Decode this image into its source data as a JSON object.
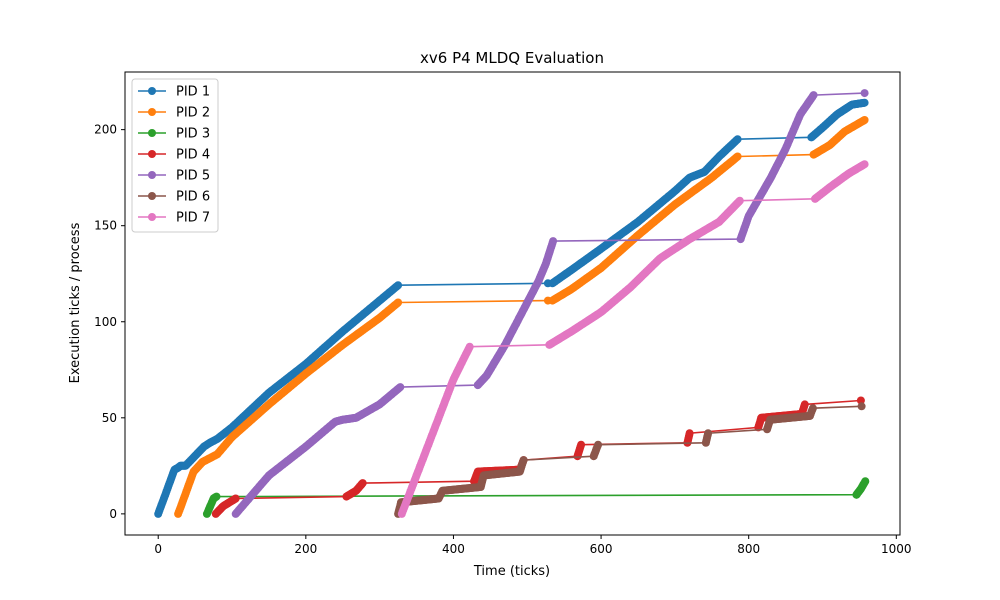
{
  "chart_data": {
    "type": "line",
    "title": "xv6 P4 MLDQ Evaluation",
    "xlabel": "Time (ticks)",
    "ylabel": "Execution ticks / process",
    "xlim": [
      -45,
      1005
    ],
    "ylim": [
      -11,
      230
    ],
    "xticks": [
      0,
      200,
      400,
      600,
      800,
      1000
    ],
    "yticks": [
      0,
      50,
      100,
      150,
      200
    ],
    "grid": false,
    "legend_position": "top-left",
    "series": [
      {
        "name": "PID 1",
        "color": "#1f77b4",
        "segments": [
          [
            [
              0,
              0
            ],
            [
              22,
              23
            ],
            [
              27,
              24
            ],
            [
              30,
              25
            ],
            [
              37,
              25
            ],
            [
              62,
              35
            ],
            [
              70,
              37
            ],
            [
              80,
              39
            ],
            [
              100,
              45
            ],
            [
              150,
              63
            ],
            [
              200,
              78
            ],
            [
              250,
              95
            ],
            [
              300,
              111
            ],
            [
              325,
              119
            ],
            [
              528,
              120
            ]
          ],
          [
            [
              534,
              120
            ],
            [
              560,
              127
            ],
            [
              600,
              138
            ],
            [
              650,
              152
            ],
            [
              700,
              168
            ],
            [
              720,
              175
            ],
            [
              740,
              178
            ],
            [
              760,
              186
            ],
            [
              785,
              195
            ],
            [
              885,
              196
            ]
          ],
          [
            [
              885,
              196
            ],
            [
              900,
              201
            ],
            [
              920,
              208
            ],
            [
              940,
              213
            ],
            [
              957,
              214
            ]
          ]
        ]
      },
      {
        "name": "PID 2",
        "color": "#ff7f0e",
        "segments": [
          [
            [
              27,
              0
            ],
            [
              48,
              22
            ],
            [
              60,
              27
            ],
            [
              80,
              31
            ],
            [
              100,
              40
            ],
            [
              150,
              57
            ],
            [
              200,
              73
            ],
            [
              250,
              88
            ],
            [
              300,
              102
            ],
            [
              325,
              110
            ],
            [
              528,
              111
            ]
          ],
          [
            [
              534,
              111
            ],
            [
              560,
              117
            ],
            [
              600,
              128
            ],
            [
              650,
              145
            ],
            [
              700,
              161
            ],
            [
              750,
              175
            ],
            [
              785,
              186
            ],
            [
              888,
              187
            ]
          ],
          [
            [
              888,
              187
            ],
            [
              910,
              192
            ],
            [
              930,
              199
            ],
            [
              957,
              205
            ]
          ]
        ]
      },
      {
        "name": "PID 3",
        "color": "#2ca02c",
        "segments": [
          [
            [
              66,
              0
            ],
            [
              75,
              8
            ],
            [
              79,
              9
            ],
            [
              946,
              10
            ]
          ],
          [
            [
              946,
              10
            ],
            [
              952,
              13
            ],
            [
              958,
              17
            ]
          ]
        ]
      },
      {
        "name": "PID 4",
        "color": "#d62728",
        "segments": [
          [
            [
              78,
              0
            ],
            [
              88,
              4
            ],
            [
              105,
              8
            ],
            [
              255,
              9
            ],
            [
              268,
              12
            ],
            [
              277,
              16
            ],
            [
              428,
              17
            ]
          ],
          [
            [
              428,
              17
            ],
            [
              433,
              22
            ],
            [
              490,
              23
            ],
            [
              495,
              28
            ],
            [
              568,
              30
            ],
            [
              573,
              36
            ],
            [
              717,
              37
            ],
            [
              720,
              42
            ],
            [
              813,
              45
            ],
            [
              817,
              50
            ],
            [
              872,
              52
            ],
            [
              876,
              57
            ],
            [
              952,
              59
            ]
          ]
        ]
      },
      {
        "name": "PID 5",
        "color": "#9467bd",
        "segments": [
          [
            [
              105,
              0
            ],
            [
              150,
              20
            ],
            [
              200,
              35
            ],
            [
              240,
              48
            ],
            [
              250,
              49
            ],
            [
              268,
              50
            ],
            [
              300,
              57
            ],
            [
              328,
              66
            ],
            [
              433,
              67
            ]
          ],
          [
            [
              433,
              67
            ],
            [
              445,
              72
            ],
            [
              470,
              88
            ],
            [
              500,
              110
            ],
            [
              515,
              121
            ],
            [
              525,
              130
            ],
            [
              535,
              142
            ],
            [
              789,
              143
            ]
          ],
          [
            [
              789,
              143
            ],
            [
              800,
              155
            ],
            [
              815,
              165
            ],
            [
              830,
              175
            ],
            [
              850,
              190
            ],
            [
              870,
              208
            ],
            [
              888,
              218
            ],
            [
              957,
              219
            ]
          ]
        ]
      },
      {
        "name": "PID 6",
        "color": "#8c564b",
        "segments": [
          [
            [
              325,
              0
            ],
            [
              329,
              6
            ],
            [
              380,
              8
            ],
            [
              385,
              12
            ],
            [
              437,
              14
            ],
            [
              441,
              20
            ],
            [
              490,
              22
            ],
            [
              495,
              28
            ],
            [
              590,
              30
            ],
            [
              596,
              36
            ],
            [
              742,
              37
            ],
            [
              745,
              42
            ],
            [
              825,
              44
            ],
            [
              829,
              49
            ],
            [
              883,
              51
            ],
            [
              887,
              55
            ],
            [
              953,
              56
            ]
          ]
        ]
      },
      {
        "name": "PID 7",
        "color": "#e377c2",
        "segments": [
          [
            [
              330,
              0
            ],
            [
              340,
              10
            ],
            [
              360,
              30
            ],
            [
              380,
              50
            ],
            [
              400,
              70
            ],
            [
              422,
              87
            ],
            [
              530,
              88
            ]
          ],
          [
            [
              530,
              88
            ],
            [
              560,
              95
            ],
            [
              600,
              105
            ],
            [
              640,
              118
            ],
            [
              680,
              133
            ],
            [
              720,
              143
            ],
            [
              760,
              152
            ],
            [
              788,
              163
            ],
            [
              890,
              164
            ]
          ],
          [
            [
              890,
              164
            ],
            [
              910,
              170
            ],
            [
              935,
              177
            ],
            [
              957,
              182
            ]
          ]
        ]
      }
    ]
  }
}
